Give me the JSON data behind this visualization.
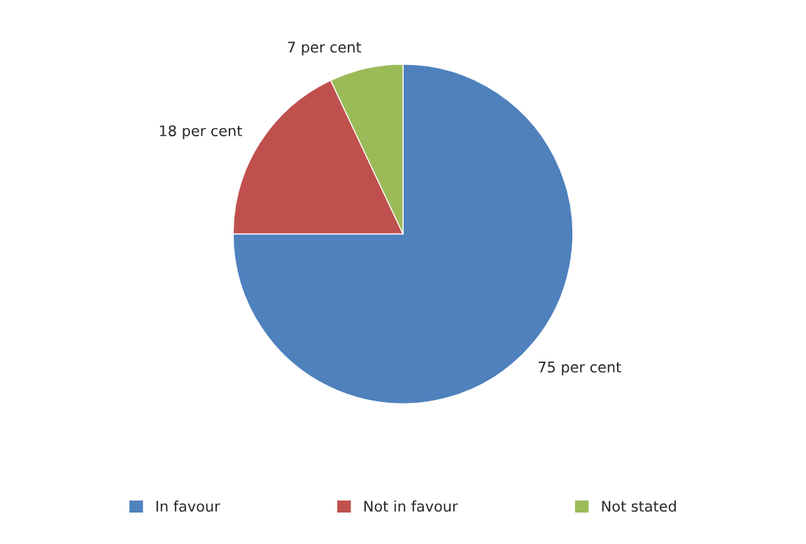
{
  "chart_data": {
    "type": "pie",
    "categories": [
      "In favour",
      "Not in favour",
      "Not stated"
    ],
    "values": [
      75,
      18,
      7
    ],
    "value_labels": [
      "75 per cent",
      "18 per cent",
      "7 per cent"
    ],
    "colors": [
      "#4f81bd",
      "#c0504d",
      "#9bbb59"
    ],
    "legend": "bottom"
  }
}
